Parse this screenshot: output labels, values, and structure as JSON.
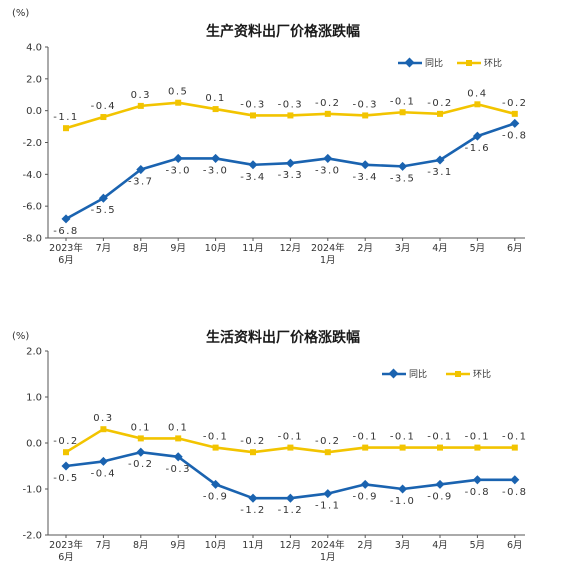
{
  "colors": {
    "yoy": "#1a63b0",
    "mom": "#f2c400"
  },
  "chart_data": [
    {
      "type": "line",
      "title": "生产资料出厂价格涨跌幅",
      "unit": "(%)",
      "categories": [
        "2023年\n6月",
        "7月",
        "8月",
        "9月",
        "10月",
        "11月",
        "12月",
        "2024年\n1月",
        "2月",
        "3月",
        "4月",
        "5月",
        "6月"
      ],
      "ylim": [
        -8.0,
        4.0
      ],
      "yticks": [
        "4.0",
        "2.0",
        "0.0",
        "-2.0",
        "-4.0",
        "-6.0",
        "-8.0"
      ],
      "legend": "top-right",
      "series": [
        {
          "name": "同比",
          "color": "#1a63b0",
          "marker": "diamond",
          "values": [
            -6.8,
            -5.5,
            -3.7,
            -3.0,
            -3.0,
            -3.4,
            -3.3,
            -3.0,
            -3.4,
            -3.5,
            -3.1,
            -1.6,
            -0.8
          ],
          "labels": [
            "-6.8",
            "-5.5",
            "-3.7",
            "-3.0",
            "-3.0",
            "-3.4",
            "-3.3",
            "-3.0",
            "-3.4",
            "-3.5",
            "-3.1",
            "-1.6",
            "-0.8"
          ]
        },
        {
          "name": "环比",
          "color": "#f2c400",
          "marker": "square",
          "values": [
            -1.1,
            -0.4,
            0.3,
            0.5,
            0.1,
            -0.3,
            -0.3,
            -0.2,
            -0.3,
            -0.1,
            -0.2,
            0.4,
            -0.2
          ],
          "labels": [
            "-1.1",
            "-0.4",
            "0.3",
            "0.5",
            "0.1",
            "-0.3",
            "-0.3",
            "-0.2",
            "-0.3",
            "-0.1",
            "-0.2",
            "0.4",
            "-0.2"
          ]
        }
      ]
    },
    {
      "type": "line",
      "title": "生活资料出厂价格涨跌幅",
      "unit": "(%)",
      "categories": [
        "2023年\n6月",
        "7月",
        "8月",
        "9月",
        "10月",
        "11月",
        "12月",
        "2024年\n1月",
        "2月",
        "3月",
        "4月",
        "5月",
        "6月"
      ],
      "ylim": [
        -2.0,
        2.0
      ],
      "yticks": [
        "2.0",
        "1.0",
        "0.0",
        "-1.0",
        "-2.0"
      ],
      "legend": "top-right",
      "series": [
        {
          "name": "同比",
          "color": "#1a63b0",
          "marker": "diamond",
          "values": [
            -0.5,
            -0.4,
            -0.2,
            -0.3,
            -0.9,
            -1.2,
            -1.2,
            -1.1,
            -0.9,
            -1.0,
            -0.9,
            -0.8,
            -0.8
          ],
          "labels": [
            "-0.5",
            "-0.4",
            "-0.2",
            "-0.3",
            "-0.9",
            "-1.2",
            "-1.2",
            "-1.1",
            "-0.9",
            "-1.0",
            "-0.9",
            "-0.8",
            "-0.8"
          ]
        },
        {
          "name": "环比",
          "color": "#f2c400",
          "marker": "square",
          "values": [
            -0.2,
            0.3,
            0.1,
            0.1,
            -0.1,
            -0.2,
            -0.1,
            -0.2,
            -0.1,
            -0.1,
            -0.1,
            -0.1,
            -0.1
          ],
          "labels": [
            "-0.2",
            "0.3",
            "0.1",
            "0.1",
            "-0.1",
            "-0.2",
            "-0.1",
            "-0.2",
            "-0.1",
            "-0.1",
            "-0.1",
            "-0.1",
            "-0.1"
          ]
        }
      ]
    }
  ]
}
